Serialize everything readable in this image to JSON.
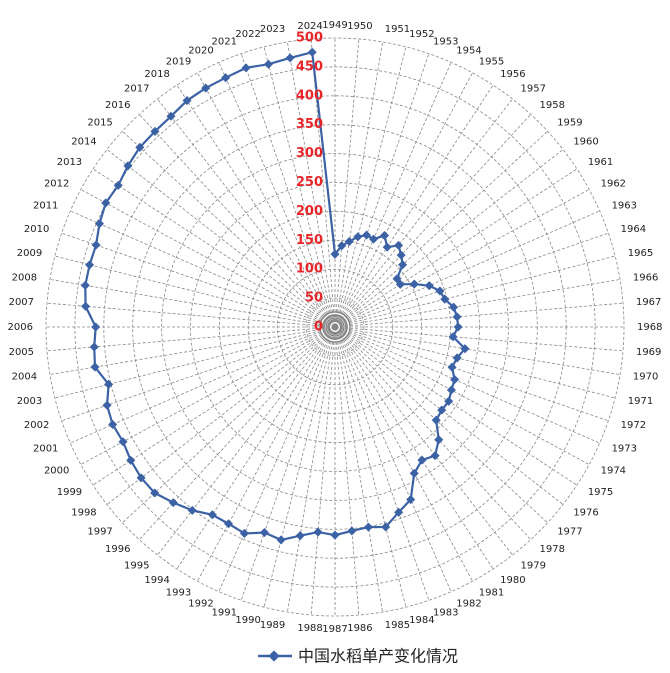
{
  "chart_data": {
    "type": "radar",
    "categories": [
      "1949",
      "1950",
      "1951",
      "1952",
      "1953",
      "1954",
      "1955",
      "1956",
      "1957",
      "1958",
      "1959",
      "1960",
      "1961",
      "1962",
      "1963",
      "1964",
      "1965",
      "1966",
      "1967",
      "1968",
      "1969",
      "1970",
      "1971",
      "1972",
      "1973",
      "1974",
      "1975",
      "1976",
      "1977",
      "1978",
      "1979",
      "1980",
      "1981",
      "1982",
      "1983",
      "1984",
      "1985",
      "1986",
      "1987",
      "1988",
      "1989",
      "1990",
      "1991",
      "1992",
      "1993",
      "1994",
      "1995",
      "1996",
      "1997",
      "1998",
      "1999",
      "2000",
      "2001",
      "2002",
      "2003",
      "2004",
      "2005",
      "2006",
      "2007",
      "2008",
      "2009",
      "2010",
      "2011",
      "2012",
      "2013",
      "2014",
      "2015",
      "2016",
      "2017",
      "2018",
      "2019",
      "2020",
      "2021",
      "2022",
      "2023",
      "2024"
    ],
    "series": [
      {
        "name": "中国水稻单产变化情况",
        "color": "#3c62a6",
        "values": [
          126,
          141,
          150,
          161,
          168,
          166,
          180,
          165,
          179,
          169,
          159,
          136,
          135,
          156,
          178,
          192,
          196,
          208,
          212,
          213,
          205,
          228,
          218,
          214,
          226,
          229,
          235,
          234,
          238,
          265,
          282,
          275,
          288,
          326,
          339,
          357,
          351,
          354,
          360,
          356,
          366,
          380,
          376,
          390,
          387,
          388,
          402,
          413,
          424,
          425,
          422,
          417,
          420,
          417,
          404,
          421,
          418,
          414,
          433,
          438,
          438,
          437,
          445,
          451,
          448,
          454,
          459,
          460,
          462,
          468,
          470,
          471,
          474,
          469,
          472,
          477
        ]
      }
    ],
    "rlim": [
      0,
      500
    ],
    "rticks": [
      0,
      50,
      100,
      150,
      200,
      250,
      300,
      350,
      400,
      450,
      500
    ],
    "tick_color": "#e8262a",
    "grid": true
  }
}
